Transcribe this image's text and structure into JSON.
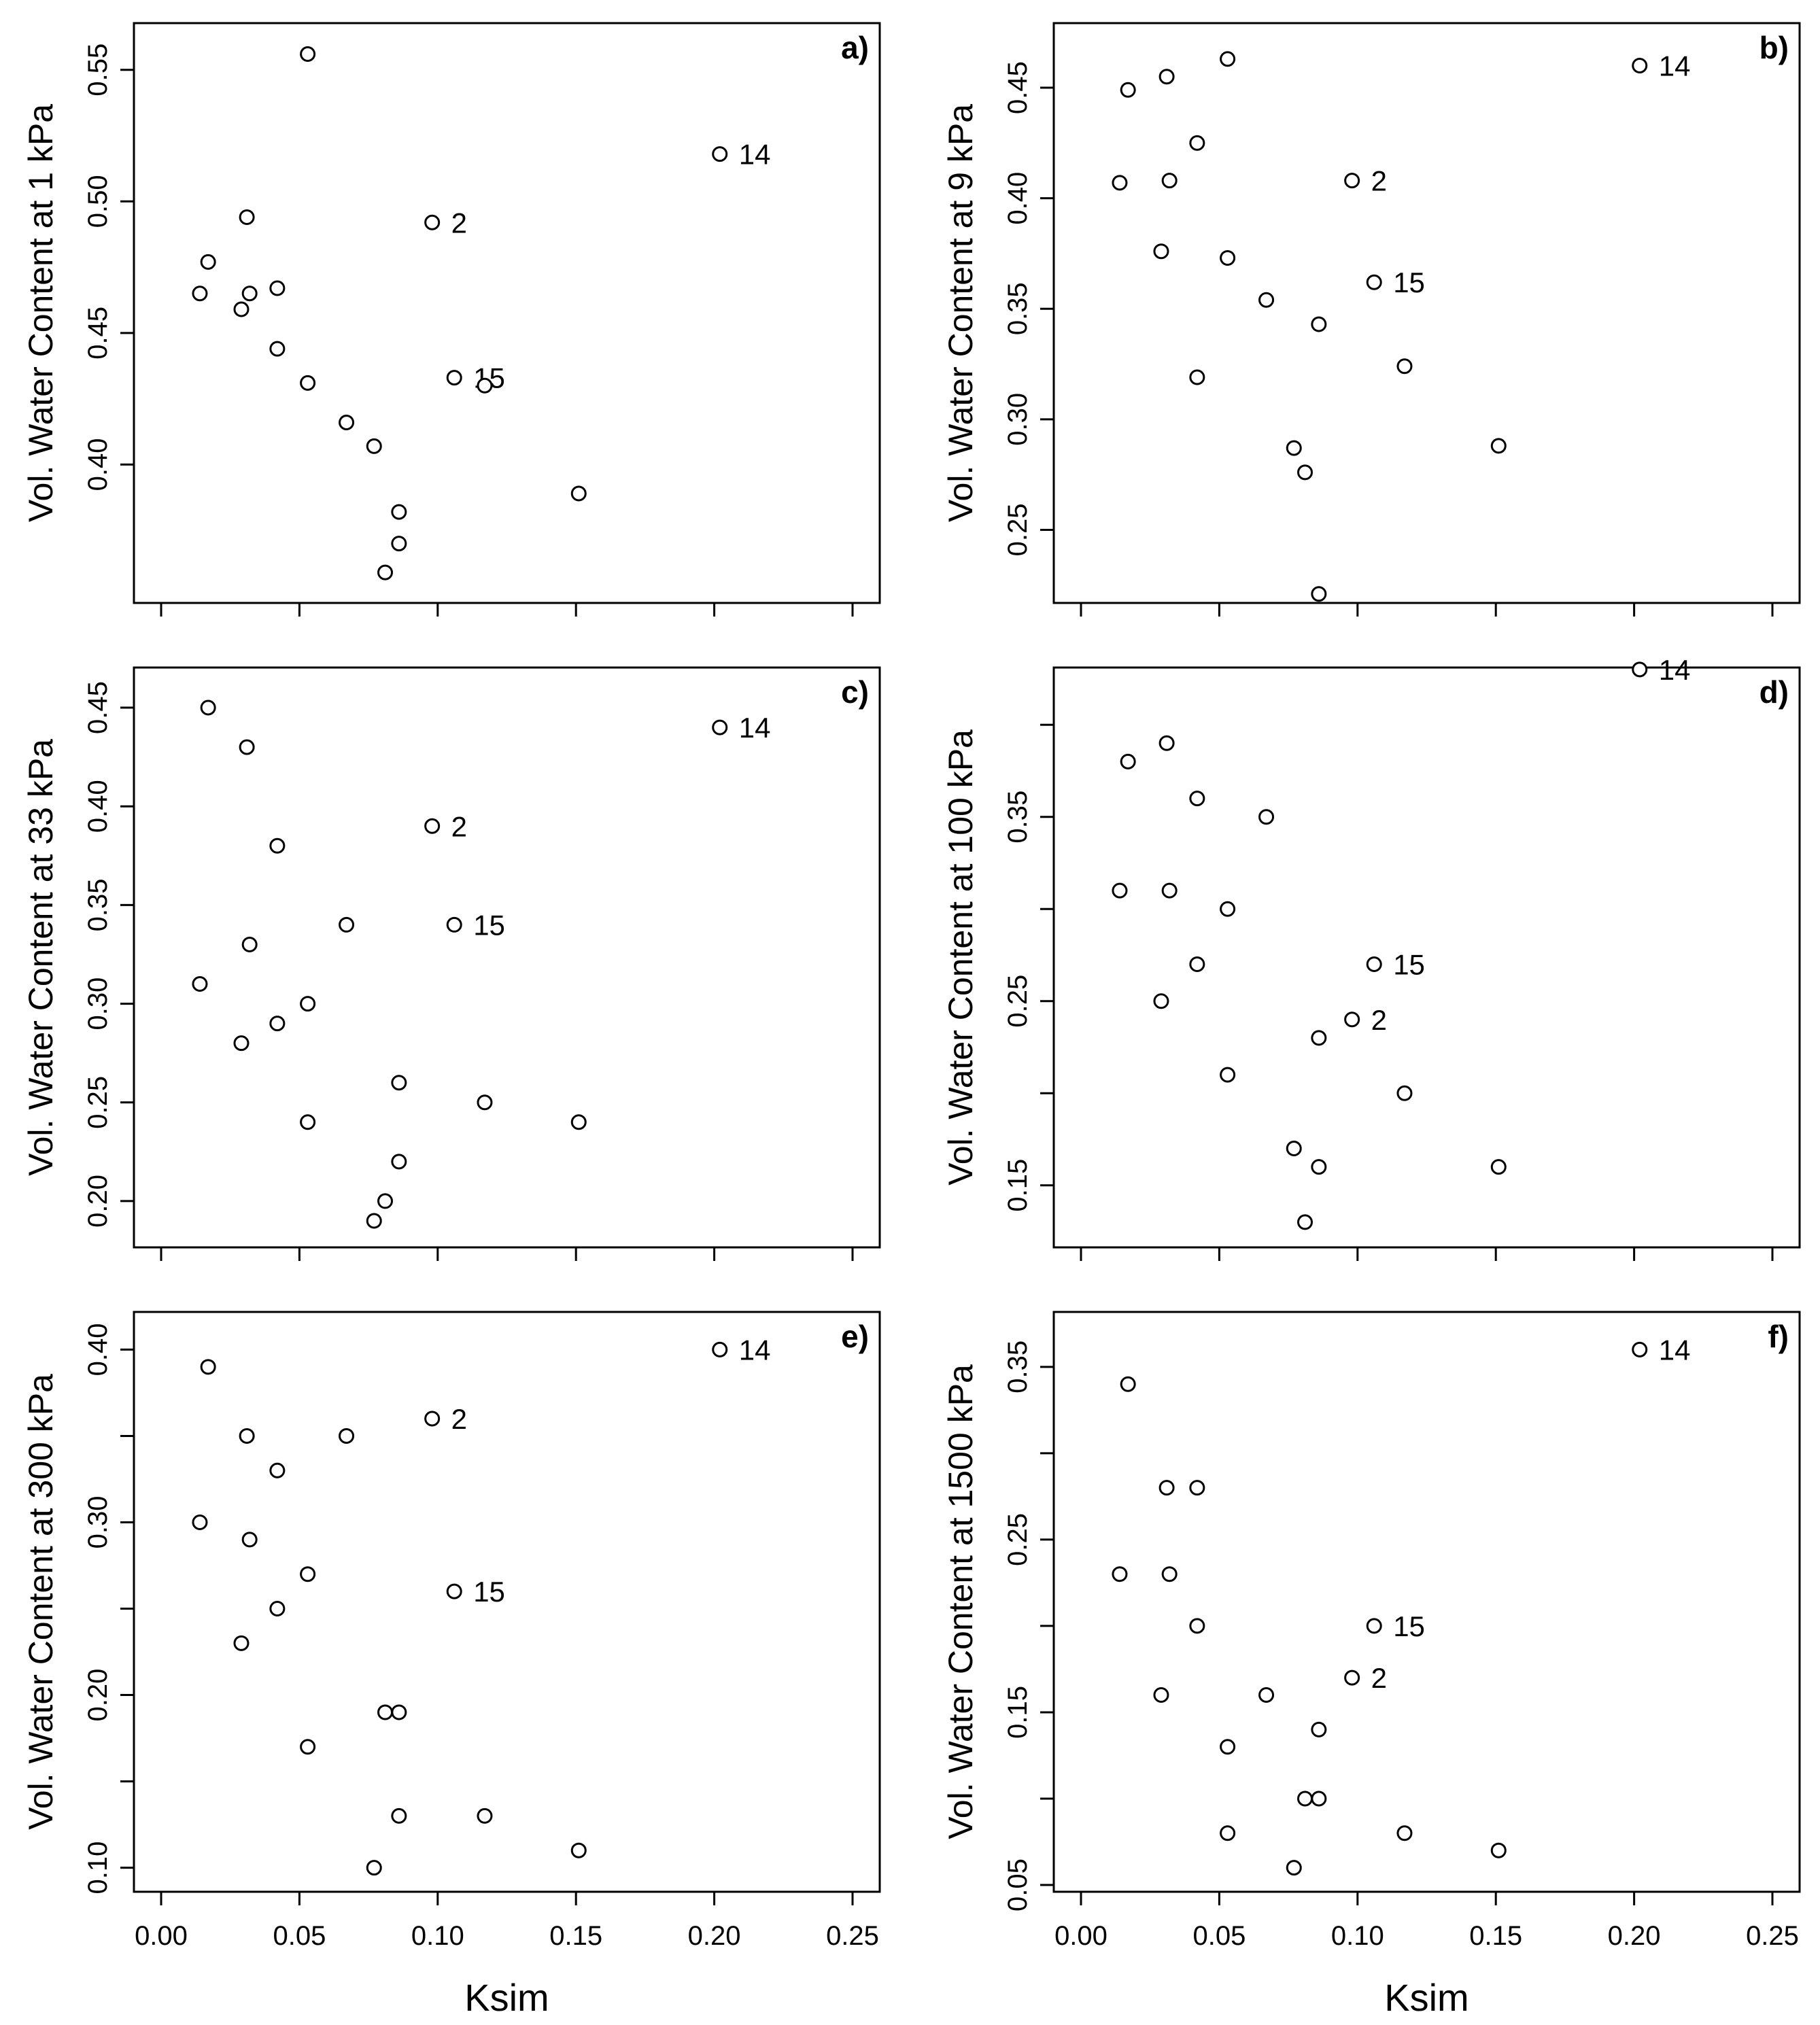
{
  "figure": {
    "xlabel": "Ksim"
  },
  "chart_data": [
    {
      "type": "scatter",
      "panel": "a)",
      "xlabel": "Ksim",
      "ylabel": "Vol. Water Content at 1 kPa",
      "xlim": [
        0,
        0.25
      ],
      "ylim": [
        0.35,
        0.56
      ],
      "xticks": [
        "0.00",
        "0.05",
        "0.10",
        "0.15",
        "0.20",
        "0.25"
      ],
      "yticks": [
        "0.40",
        "0.45",
        "0.50",
        "0.55"
      ],
      "show_xtick_labels": false,
      "points": [
        {
          "x": 0.014,
          "y": 0.465
        },
        {
          "x": 0.017,
          "y": 0.477
        },
        {
          "x": 0.029,
          "y": 0.459
        },
        {
          "x": 0.031,
          "y": 0.494
        },
        {
          "x": 0.032,
          "y": 0.465
        },
        {
          "x": 0.042,
          "y": 0.467
        },
        {
          "x": 0.042,
          "y": 0.444
        },
        {
          "x": 0.053,
          "y": 0.556
        },
        {
          "x": 0.053,
          "y": 0.431
        },
        {
          "x": 0.067,
          "y": 0.416
        },
        {
          "x": 0.077,
          "y": 0.407
        },
        {
          "x": 0.081,
          "y": 0.359
        },
        {
          "x": 0.086,
          "y": 0.382
        },
        {
          "x": 0.086,
          "y": 0.37
        },
        {
          "x": 0.098,
          "y": 0.492,
          "label": "2"
        },
        {
          "x": 0.106,
          "y": 0.433,
          "label": "15"
        },
        {
          "x": 0.117,
          "y": 0.43
        },
        {
          "x": 0.151,
          "y": 0.389
        },
        {
          "x": 0.202,
          "y": 0.518,
          "label": "14"
        }
      ]
    },
    {
      "type": "scatter",
      "panel": "b)",
      "xlabel": "Ksim",
      "ylabel": "Vol. Water Content at 9 kPa",
      "xlim": [
        0,
        0.25
      ],
      "ylim": [
        0.22,
        0.47
      ],
      "xticks": [
        "0.00",
        "0.05",
        "0.10",
        "0.15",
        "0.20",
        "0.25"
      ],
      "yticks": [
        "0.25",
        "0.30",
        "0.35",
        "0.40",
        "0.45"
      ],
      "show_xtick_labels": false,
      "points": [
        {
          "x": 0.014,
          "y": 0.407
        },
        {
          "x": 0.017,
          "y": 0.449
        },
        {
          "x": 0.029,
          "y": 0.376
        },
        {
          "x": 0.031,
          "y": 0.455
        },
        {
          "x": 0.032,
          "y": 0.408
        },
        {
          "x": 0.042,
          "y": 0.425
        },
        {
          "x": 0.042,
          "y": 0.319
        },
        {
          "x": 0.053,
          "y": 0.463
        },
        {
          "x": 0.053,
          "y": 0.373
        },
        {
          "x": 0.067,
          "y": 0.354
        },
        {
          "x": 0.077,
          "y": 0.287
        },
        {
          "x": 0.081,
          "y": 0.276
        },
        {
          "x": 0.086,
          "y": 0.343
        },
        {
          "x": 0.086,
          "y": 0.221
        },
        {
          "x": 0.098,
          "y": 0.408,
          "label": "2"
        },
        {
          "x": 0.106,
          "y": 0.362,
          "label": "15"
        },
        {
          "x": 0.117,
          "y": 0.324
        },
        {
          "x": 0.151,
          "y": 0.288
        },
        {
          "x": 0.202,
          "y": 0.46,
          "label": "14"
        }
      ]
    },
    {
      "type": "scatter",
      "panel": "c)",
      "xlabel": "Ksim",
      "ylabel": "Vol. Water Content at 33 kPa",
      "xlim": [
        0,
        0.25
      ],
      "ylim": [
        0.18,
        0.46
      ],
      "xticks": [
        "0.00",
        "0.05",
        "0.10",
        "0.15",
        "0.20",
        "0.25"
      ],
      "yticks": [
        "0.20",
        "0.25",
        "0.30",
        "0.35",
        "0.40",
        "0.45"
      ],
      "show_xtick_labels": false,
      "points": [
        {
          "x": 0.014,
          "y": 0.31
        },
        {
          "x": 0.017,
          "y": 0.45
        },
        {
          "x": 0.029,
          "y": 0.28
        },
        {
          "x": 0.031,
          "y": 0.43
        },
        {
          "x": 0.032,
          "y": 0.33
        },
        {
          "x": 0.042,
          "y": 0.38
        },
        {
          "x": 0.042,
          "y": 0.29
        },
        {
          "x": 0.053,
          "y": 0.3
        },
        {
          "x": 0.053,
          "y": 0.24
        },
        {
          "x": 0.067,
          "y": 0.34
        },
        {
          "x": 0.077,
          "y": 0.19
        },
        {
          "x": 0.081,
          "y": 0.2
        },
        {
          "x": 0.086,
          "y": 0.26
        },
        {
          "x": 0.086,
          "y": 0.22
        },
        {
          "x": 0.098,
          "y": 0.39,
          "label": "2"
        },
        {
          "x": 0.106,
          "y": 0.34,
          "label": "15"
        },
        {
          "x": 0.117,
          "y": 0.25
        },
        {
          "x": 0.151,
          "y": 0.24
        },
        {
          "x": 0.202,
          "y": 0.44,
          "label": "14"
        }
      ]
    },
    {
      "type": "scatter",
      "panel": "d)",
      "xlabel": "Ksim",
      "ylabel": "Vol. Water Content at 100 kPa",
      "xlim": [
        0,
        0.25
      ],
      "ylim": [
        0.12,
        0.42
      ],
      "xticks": [
        "0.00",
        "0.05",
        "0.10",
        "0.15",
        "0.20",
        "0.25"
      ],
      "yticks": [
        "0.15",
        "0.25",
        "0.35"
      ],
      "minor_yticks": [
        0.2,
        0.3,
        0.4
      ],
      "show_xtick_labels": false,
      "points": [
        {
          "x": 0.014,
          "y": 0.31
        },
        {
          "x": 0.017,
          "y": 0.38
        },
        {
          "x": 0.029,
          "y": 0.25
        },
        {
          "x": 0.031,
          "y": 0.39
        },
        {
          "x": 0.032,
          "y": 0.31
        },
        {
          "x": 0.042,
          "y": 0.36
        },
        {
          "x": 0.042,
          "y": 0.27
        },
        {
          "x": 0.053,
          "y": 0.3
        },
        {
          "x": 0.053,
          "y": 0.21
        },
        {
          "x": 0.067,
          "y": 0.35
        },
        {
          "x": 0.077,
          "y": 0.17
        },
        {
          "x": 0.081,
          "y": 0.13
        },
        {
          "x": 0.086,
          "y": 0.23
        },
        {
          "x": 0.086,
          "y": 0.16
        },
        {
          "x": 0.098,
          "y": 0.24,
          "label": "2"
        },
        {
          "x": 0.106,
          "y": 0.27,
          "label": "15"
        },
        {
          "x": 0.117,
          "y": 0.2
        },
        {
          "x": 0.151,
          "y": 0.16
        },
        {
          "x": 0.202,
          "y": 0.43,
          "label": "14"
        }
      ]
    },
    {
      "type": "scatter",
      "panel": "e)",
      "xlabel": "Ksim",
      "ylabel": "Vol. Water Content at 300 kPa",
      "xlim": [
        0,
        0.25
      ],
      "ylim": [
        0.09,
        0.41
      ],
      "xticks": [
        "0.00",
        "0.05",
        "0.10",
        "0.15",
        "0.20",
        "0.25"
      ],
      "yticks": [
        "0.10",
        "0.20",
        "0.30",
        "0.40"
      ],
      "minor_yticks": [
        0.15,
        0.25,
        0.35
      ],
      "show_xtick_labels": true,
      "points": [
        {
          "x": 0.014,
          "y": 0.3
        },
        {
          "x": 0.017,
          "y": 0.39
        },
        {
          "x": 0.029,
          "y": 0.23
        },
        {
          "x": 0.031,
          "y": 0.35
        },
        {
          "x": 0.032,
          "y": 0.29
        },
        {
          "x": 0.042,
          "y": 0.33
        },
        {
          "x": 0.042,
          "y": 0.25
        },
        {
          "x": 0.053,
          "y": 0.27
        },
        {
          "x": 0.053,
          "y": 0.17
        },
        {
          "x": 0.067,
          "y": 0.35
        },
        {
          "x": 0.077,
          "y": 0.1
        },
        {
          "x": 0.081,
          "y": 0.19
        },
        {
          "x": 0.086,
          "y": 0.19
        },
        {
          "x": 0.086,
          "y": 0.13
        },
        {
          "x": 0.098,
          "y": 0.36,
          "label": "2"
        },
        {
          "x": 0.106,
          "y": 0.26,
          "label": "15"
        },
        {
          "x": 0.117,
          "y": 0.13
        },
        {
          "x": 0.151,
          "y": 0.11
        },
        {
          "x": 0.202,
          "y": 0.4,
          "label": "14"
        }
      ]
    },
    {
      "type": "scatter",
      "panel": "f)",
      "xlabel": "Ksim",
      "ylabel": "Vol. Water Content at 1500 kPa",
      "xlim": [
        0,
        0.25
      ],
      "ylim": [
        0.05,
        0.37
      ],
      "xticks": [
        "0.00",
        "0.05",
        "0.10",
        "0.15",
        "0.20",
        "0.25"
      ],
      "yticks": [
        "0.05",
        "0.15",
        "0.25",
        "0.35"
      ],
      "minor_yticks": [
        0.1,
        0.2,
        0.3
      ],
      "show_xtick_labels": true,
      "points": [
        {
          "x": 0.014,
          "y": 0.23
        },
        {
          "x": 0.017,
          "y": 0.34
        },
        {
          "x": 0.029,
          "y": 0.16
        },
        {
          "x": 0.031,
          "y": 0.28
        },
        {
          "x": 0.032,
          "y": 0.23
        },
        {
          "x": 0.042,
          "y": 0.28
        },
        {
          "x": 0.042,
          "y": 0.2
        },
        {
          "x": 0.053,
          "y": 0.13
        },
        {
          "x": 0.053,
          "y": 0.08
        },
        {
          "x": 0.067,
          "y": 0.16
        },
        {
          "x": 0.077,
          "y": 0.06
        },
        {
          "x": 0.081,
          "y": 0.1
        },
        {
          "x": 0.086,
          "y": 0.14
        },
        {
          "x": 0.086,
          "y": 0.1
        },
        {
          "x": 0.098,
          "y": 0.17,
          "label": "2"
        },
        {
          "x": 0.106,
          "y": 0.2,
          "label": "15"
        },
        {
          "x": 0.117,
          "y": 0.08
        },
        {
          "x": 0.151,
          "y": 0.07
        },
        {
          "x": 0.202,
          "y": 0.36,
          "label": "14"
        }
      ]
    }
  ]
}
